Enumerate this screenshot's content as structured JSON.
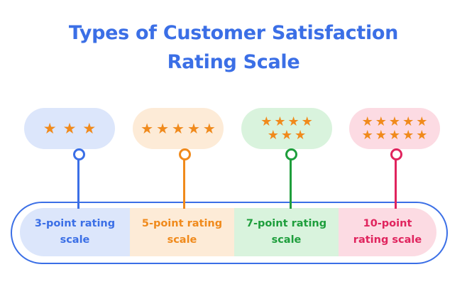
{
  "title": {
    "line1": "Types of Customer Satisfaction",
    "line2": "Rating Scale"
  },
  "scales": [
    {
      "stars_rows": [
        "★★★"
      ],
      "label_line1": "3-point rating",
      "label_line2": "scale",
      "accent_color": "#3b6fe6",
      "pill_bg": "#dce6fb",
      "segment_bg": "#dce6fb",
      "label_color": "#3b6fe6"
    },
    {
      "stars_rows": [
        "★★★★★"
      ],
      "label_line1": "5-point rating",
      "label_line2": "scale",
      "accent_color": "#f08a1c",
      "pill_bg": "#fdebd7",
      "segment_bg": "#fdebd7",
      "label_color": "#f08a1c"
    },
    {
      "stars_rows": [
        "★★★★",
        "★★★"
      ],
      "label_line1": "7-point rating",
      "label_line2": "scale",
      "accent_color": "#1e9e3c",
      "pill_bg": "#d9f3dd",
      "segment_bg": "#d9f3dd",
      "label_color": "#1e9e3c"
    },
    {
      "stars_rows": [
        "★★★★★",
        "★★★★★"
      ],
      "label_line1": "10-point",
      "label_line2": "rating scale",
      "accent_color": "#e0245e",
      "pill_bg": "#fcdbe3",
      "segment_bg": "#fcdbe3",
      "label_color": "#e0245e"
    }
  ],
  "colors": {
    "title": "#3b6fe6",
    "star": "#f08a1c",
    "frame_border": "#3b6fe6"
  }
}
